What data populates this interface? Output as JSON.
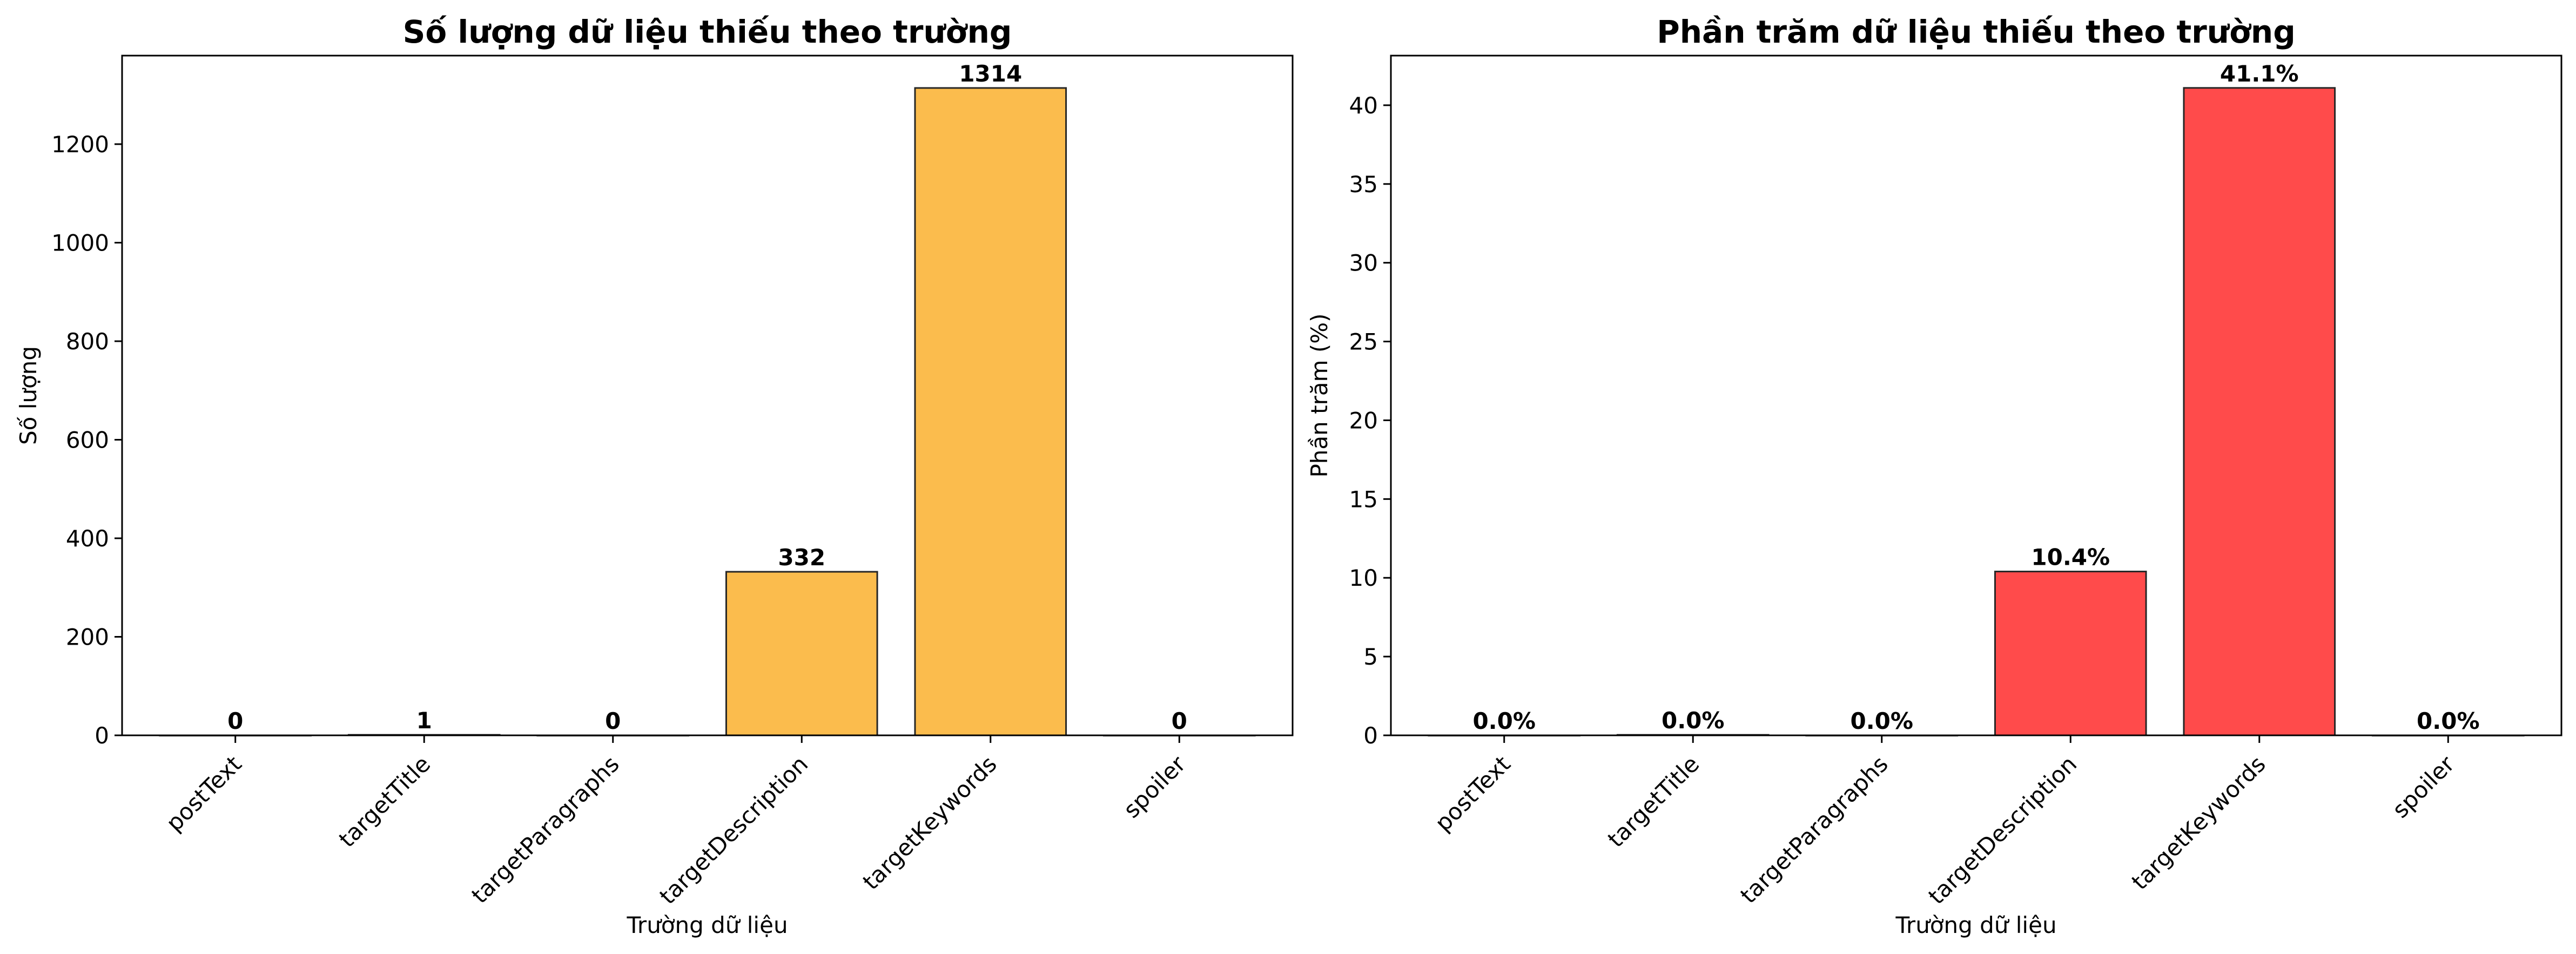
{
  "chart_data": [
    {
      "type": "bar",
      "title": "Số lượng dữ liệu thiếu theo trường",
      "xlabel": "Trường dữ liệu",
      "ylabel": "Số lượng",
      "categories": [
        "postText",
        "targetTitle",
        "targetParagraphs",
        "targetDescription",
        "targetKeywords",
        "spoiler"
      ],
      "values": [
        0,
        1,
        0,
        332,
        1314,
        0
      ],
      "data_labels": [
        "0",
        "1",
        "0",
        "332",
        "1314",
        "0"
      ],
      "ylim": [
        0,
        1379.7
      ],
      "yticks": [
        0,
        200,
        400,
        600,
        800,
        1000,
        1200
      ],
      "ytick_labels": [
        "0",
        "200",
        "400",
        "600",
        "800",
        "1000",
        "1200"
      ],
      "bar_color": "#fbbc4d",
      "grid": false,
      "legend": false
    },
    {
      "type": "bar",
      "title": "Phần trăm dữ liệu thiếu theo trường",
      "xlabel": "Trường dữ liệu",
      "ylabel": "Phần trăm (%)",
      "categories": [
        "postText",
        "targetTitle",
        "targetParagraphs",
        "targetDescription",
        "targetKeywords",
        "spoiler"
      ],
      "values": [
        0.0,
        0.03,
        0.0,
        10.4,
        41.1,
        0.0
      ],
      "data_labels": [
        "0.0%",
        "0.0%",
        "0.0%",
        "10.4%",
        "41.1%",
        "0.0%"
      ],
      "ylim": [
        0,
        43.15
      ],
      "yticks": [
        0,
        5,
        10,
        15,
        20,
        25,
        30,
        35,
        40
      ],
      "ytick_labels": [
        "0",
        "5",
        "10",
        "15",
        "20",
        "25",
        "30",
        "35",
        "40"
      ],
      "bar_color": "#ff4b4b",
      "grid": false,
      "legend": false
    }
  ]
}
